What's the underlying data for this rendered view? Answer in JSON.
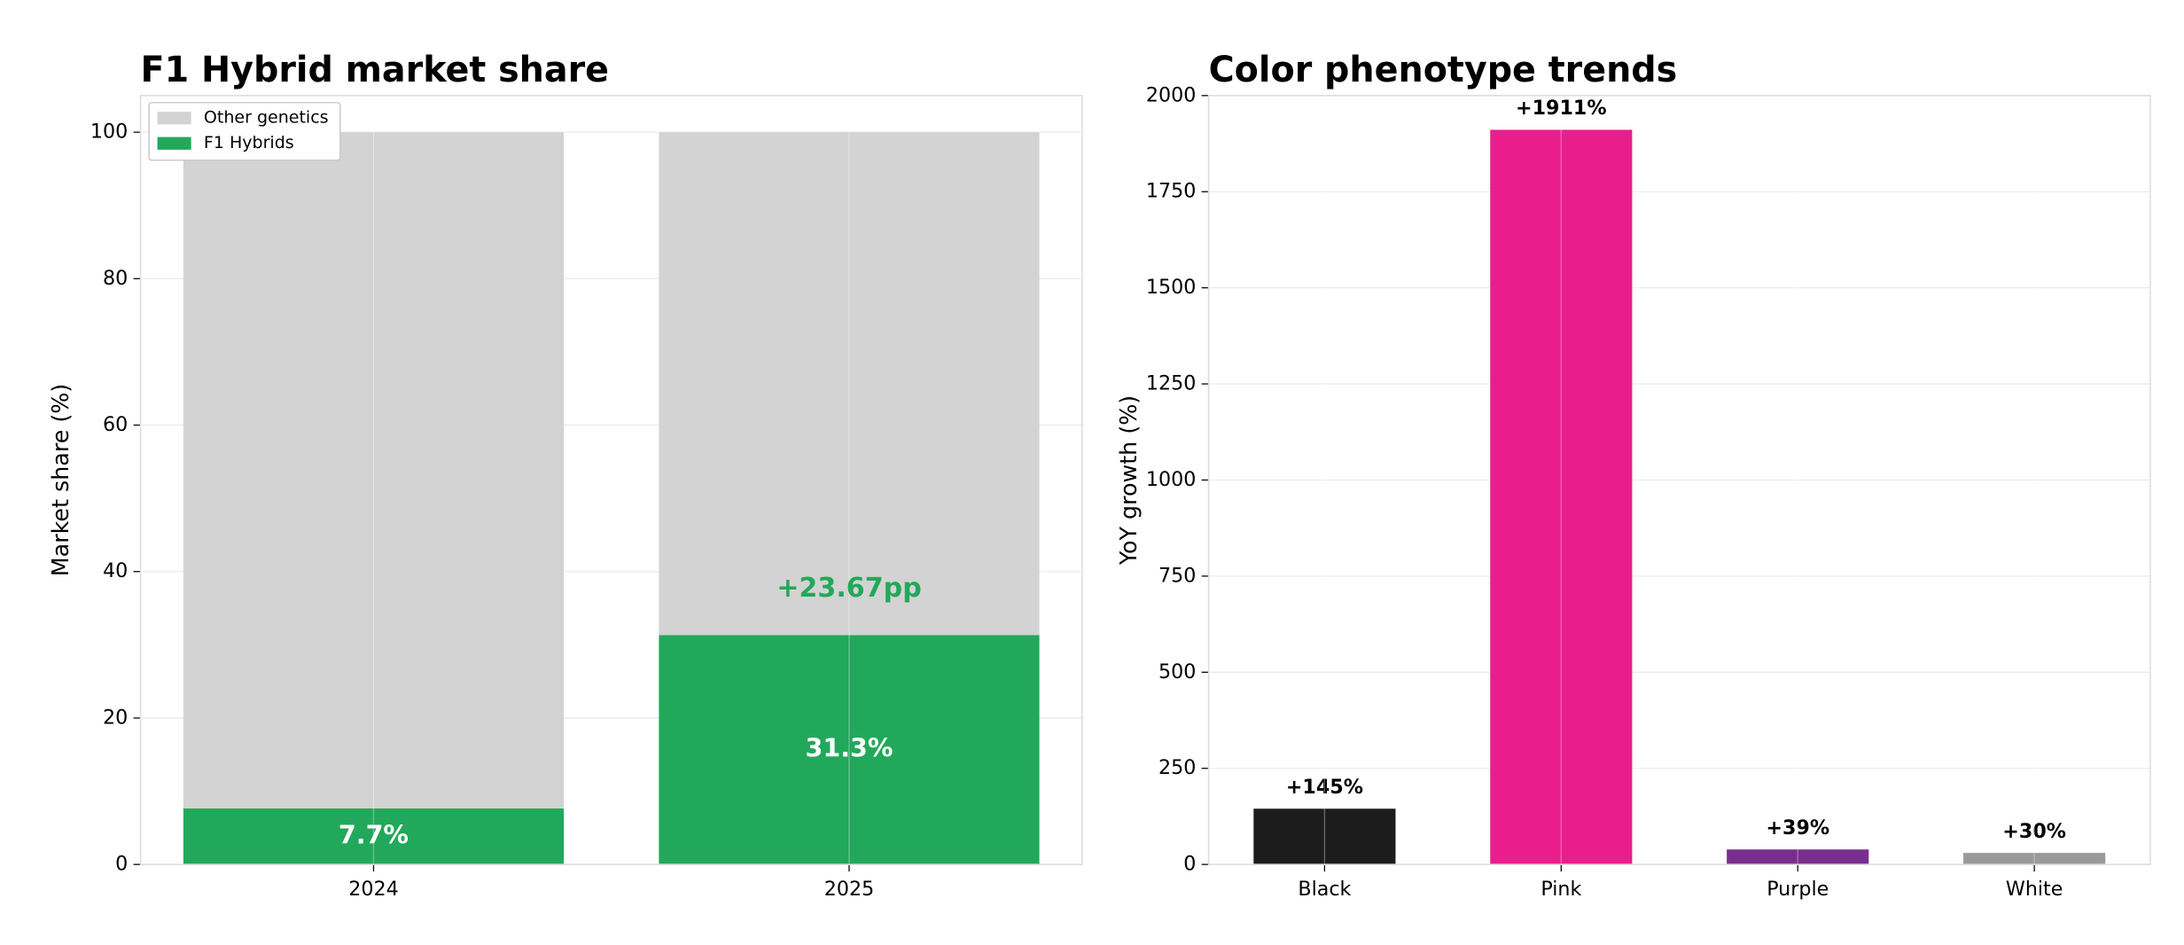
{
  "chart_data": [
    {
      "type": "bar",
      "stacked": true,
      "title": "F1 Hybrid market share",
      "ylabel": "Market share (%)",
      "categories": [
        "2024",
        "2025"
      ],
      "series": [
        {
          "name": "F1 Hybrids",
          "color": "#22a85a",
          "values": [
            7.66,
            31.33
          ],
          "value_labels": [
            "7.7%",
            "31.3%"
          ]
        },
        {
          "name": "Other genetics",
          "color": "#d3d3d3",
          "values": [
            92.34,
            68.67
          ]
        }
      ],
      "annotation": "+23.67pp",
      "annotation_color": "#22a85a",
      "ylim": [
        0,
        105
      ],
      "yticks": [
        0,
        20,
        40,
        60,
        80,
        100
      ],
      "grid": true,
      "legend": "upper left"
    },
    {
      "type": "bar",
      "title": "Color phenotype trends",
      "ylabel": "YoY growth (%)",
      "categories": [
        "Black",
        "Pink",
        "Purple",
        "White"
      ],
      "values": [
        145,
        1911,
        39,
        30
      ],
      "value_labels": [
        "+145%",
        "+1911%",
        "+39%",
        "+30%"
      ],
      "colors": [
        "#1c1c1c",
        "#e91e8c",
        "#7b2d8e",
        "#999999"
      ],
      "ylim": [
        0,
        2000
      ],
      "yticks": [
        0,
        250,
        500,
        750,
        1000,
        1250,
        1500,
        1750,
        2000
      ],
      "grid": true
    }
  ]
}
